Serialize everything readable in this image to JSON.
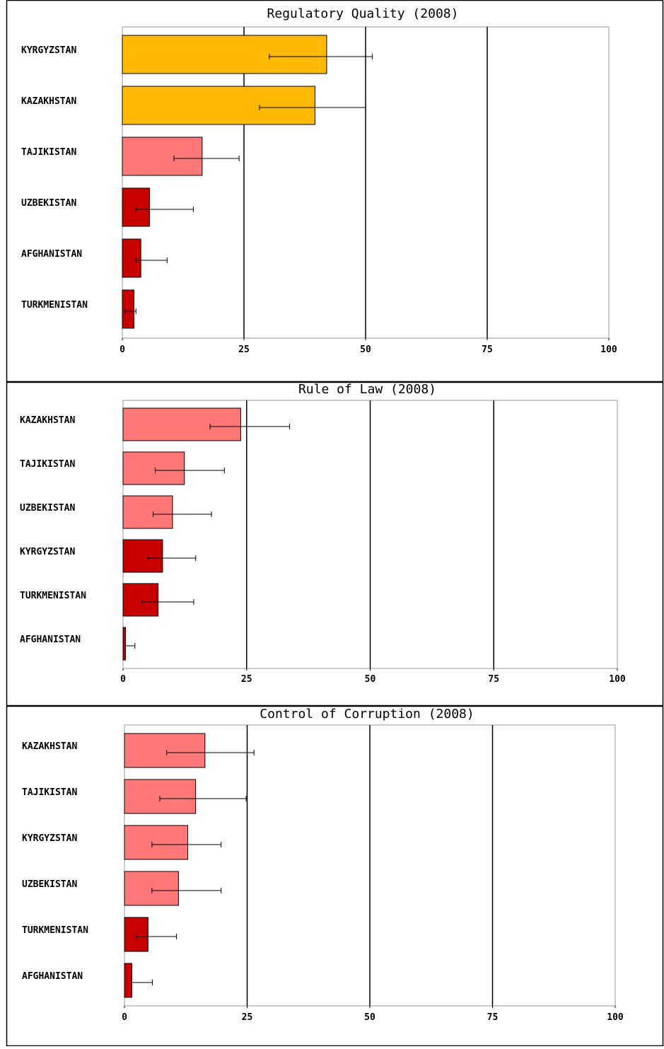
{
  "colors": {
    "orange": "#ffb900",
    "pink": "#ff7878",
    "red": "#c80000",
    "frame": "#999999",
    "border": "#000000"
  },
  "chart_data": [
    {
      "type": "bar",
      "orientation": "horizontal",
      "title": "Regulatory Quality (2008)",
      "xlim": [
        0,
        100
      ],
      "xticks": [
        "0",
        "25",
        "50",
        "75",
        "100"
      ],
      "grid": true,
      "categories": [
        "KYRGYZSTAN",
        "KAZAKHSTAN",
        "TAJIKISTAN",
        "UZBEKISTAN",
        "AFGHANISTAN",
        "TURKMENISTAN"
      ],
      "values": [
        42.0,
        39.6,
        16.4,
        5.6,
        3.8,
        2.4
      ],
      "error_low": [
        30.2,
        28.2,
        10.6,
        2.8,
        2.8,
        0.6
      ],
      "error_high": [
        51.4,
        50.0,
        24.0,
        14.6,
        9.2,
        2.8
      ],
      "bar_colors": [
        "orange",
        "orange",
        "pink",
        "red",
        "red",
        "red"
      ]
    },
    {
      "type": "bar",
      "orientation": "horizontal",
      "title": "Rule of Law (2008)",
      "xlim": [
        0,
        100
      ],
      "xticks": [
        "0",
        "25",
        "50",
        "75",
        "100"
      ],
      "grid": true,
      "categories": [
        "KAZAKHSTAN",
        "TAJIKISTAN",
        "UZBEKISTAN",
        "KYRGYZSTAN",
        "TURKMENISTAN",
        "AFGHANISTAN"
      ],
      "values": [
        23.8,
        12.4,
        10.0,
        8.0,
        7.1,
        0.5
      ],
      "error_low": [
        17.6,
        6.5,
        6.1,
        5.1,
        3.8,
        0.5
      ],
      "error_high": [
        33.7,
        20.5,
        17.9,
        14.7,
        14.3,
        2.4
      ],
      "bar_colors": [
        "pink",
        "pink",
        "pink",
        "red",
        "red",
        "red"
      ]
    },
    {
      "type": "bar",
      "orientation": "horizontal",
      "title": "Control of Corruption (2008)",
      "xlim": [
        0,
        100
      ],
      "xticks": [
        "0",
        "25",
        "50",
        "75",
        "100"
      ],
      "grid": true,
      "categories": [
        "KAZAKHSTAN",
        "TAJIKISTAN",
        "KYRGYZSTAN",
        "UZBEKISTAN",
        "TURKMENISTAN",
        "AFGHANISTAN"
      ],
      "values": [
        16.4,
        14.5,
        12.9,
        11.0,
        4.8,
        1.5
      ],
      "error_low": [
        8.6,
        7.2,
        5.6,
        5.6,
        2.4,
        1.5
      ],
      "error_high": [
        26.4,
        24.8,
        19.7,
        19.7,
        10.6,
        5.7
      ],
      "bar_colors": [
        "pink",
        "pink",
        "pink",
        "pink",
        "red",
        "red"
      ]
    }
  ]
}
